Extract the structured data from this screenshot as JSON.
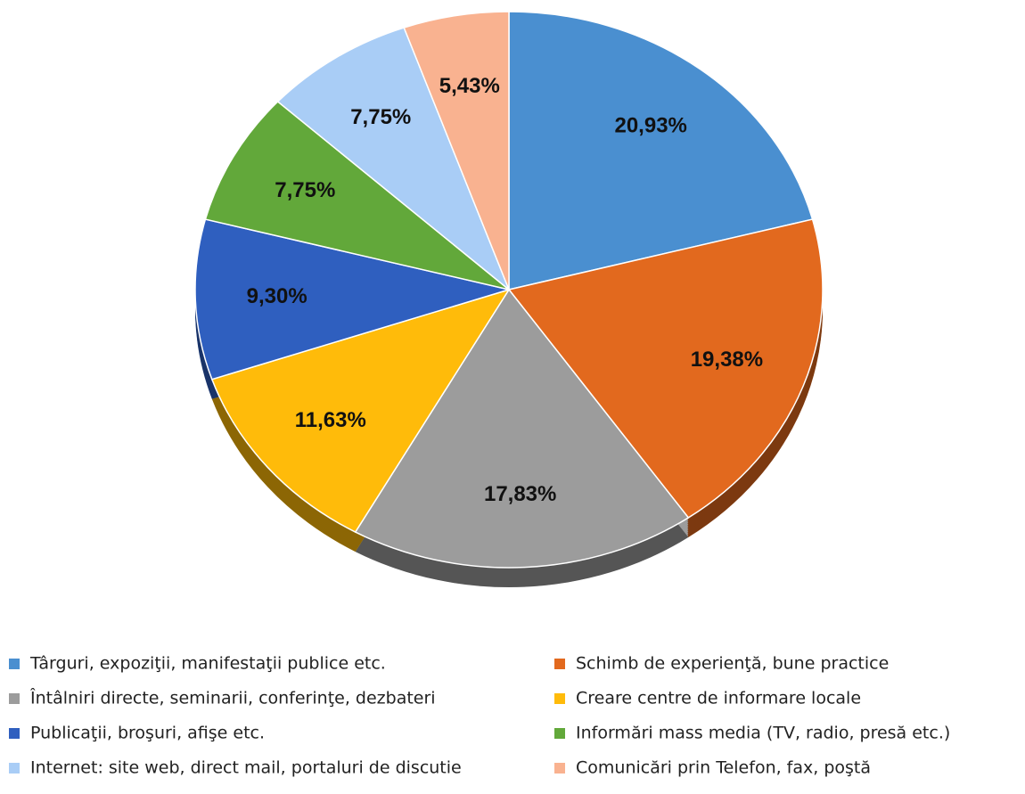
{
  "chart_data": {
    "type": "pie",
    "categories": [
      "Târguri, expoziţii, manifestaţii publice etc.",
      "Schimb de experienţă, bune practice",
      "Întâlniri directe, seminarii, conferinţe, dezbateri",
      "Creare centre de informare locale",
      "Publicaţii, broşuri, afişe etc.",
      "Informări mass media (TV, radio, presă etc.)",
      "Internet: site web, direct mail, portaluri de discutie",
      "Comunicări prin Telefon, fax, poştă"
    ],
    "values": [
      20.93,
      19.38,
      17.83,
      11.63,
      9.3,
      7.75,
      7.75,
      5.43
    ],
    "value_labels": [
      "20,93%",
      "19,38%",
      "17,83%",
      "11,63%",
      "9,30%",
      "7,75%",
      "7,75%",
      "5,43%"
    ],
    "colors": [
      "#4a8fd0",
      "#e2691e",
      "#9c9c9c",
      "#ffbb0a",
      "#2f5fbf",
      "#62a83a",
      "#a9cdf6",
      "#f9b290"
    ],
    "legend": "bottom"
  }
}
